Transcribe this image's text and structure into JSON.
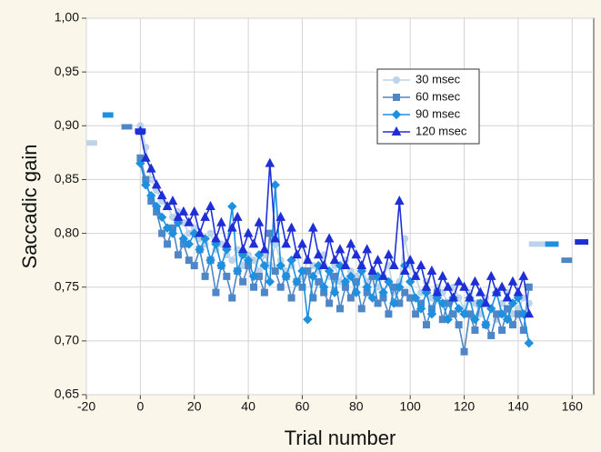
{
  "chart_data": {
    "type": "line",
    "x_label": "Trial number",
    "y_label": "Saccadic gain",
    "xlim": [
      -20,
      168
    ],
    "ylim": [
      0.65,
      1.0
    ],
    "xticks": [
      -20,
      0,
      20,
      40,
      60,
      80,
      100,
      120,
      140,
      160
    ],
    "yticks": [
      {
        "value": 0.65,
        "label": "0,65"
      },
      {
        "value": 0.7,
        "label": "0,70"
      },
      {
        "value": 0.75,
        "label": "0,75"
      },
      {
        "value": 0.8,
        "label": "0,80"
      },
      {
        "value": 0.85,
        "label": "0,85"
      },
      {
        "value": 0.9,
        "label": "0,90"
      },
      {
        "value": 0.95,
        "label": "0,95"
      },
      {
        "value": 1.0,
        "label": "1,00"
      }
    ],
    "grid": true,
    "legend": "upper-right",
    "x": [
      0,
      2,
      4,
      6,
      8,
      10,
      12,
      14,
      16,
      18,
      20,
      22,
      24,
      26,
      28,
      30,
      32,
      34,
      36,
      38,
      40,
      42,
      44,
      46,
      48,
      50,
      52,
      54,
      56,
      58,
      60,
      62,
      64,
      66,
      68,
      70,
      72,
      74,
      76,
      78,
      80,
      82,
      84,
      86,
      88,
      90,
      92,
      94,
      96,
      98,
      100,
      102,
      104,
      106,
      108,
      110,
      112,
      114,
      116,
      118,
      120,
      122,
      124,
      126,
      128,
      130,
      132,
      134,
      136,
      138,
      140,
      142,
      144
    ],
    "series": [
      {
        "name": "30 msec",
        "color": "#bcd3ea",
        "marker": "circle",
        "pre": {
          "x": [
            -20,
            -16
          ],
          "value": 0.884
        },
        "post": {
          "x": [
            144,
            150
          ],
          "value": 0.79
        },
        "values": [
          0.9,
          0.88,
          0.85,
          0.84,
          0.83,
          0.825,
          0.815,
          0.82,
          0.81,
          0.8,
          0.805,
          0.795,
          0.79,
          0.8,
          0.785,
          0.79,
          0.78,
          0.775,
          0.785,
          0.77,
          0.78,
          0.775,
          0.765,
          0.78,
          0.77,
          0.79,
          0.775,
          0.765,
          0.77,
          0.78,
          0.76,
          0.775,
          0.77,
          0.765,
          0.78,
          0.76,
          0.77,
          0.755,
          0.775,
          0.765,
          0.76,
          0.77,
          0.755,
          0.765,
          0.75,
          0.76,
          0.77,
          0.745,
          0.755,
          0.795,
          0.77,
          0.76,
          0.745,
          0.755,
          0.74,
          0.75,
          0.745,
          0.735,
          0.75,
          0.74,
          0.73,
          0.745,
          0.735,
          0.725,
          0.74,
          0.73,
          0.72,
          0.735,
          0.745,
          0.725,
          0.73,
          0.74,
          0.735
        ]
      },
      {
        "name": "60 msec",
        "color": "#4f86c6",
        "marker": "square",
        "pre": {
          "x": [
            -7,
            -3
          ],
          "value": 0.899
        },
        "post": {
          "x": [
            156,
            160
          ],
          "value": 0.775
        },
        "values": [
          0.87,
          0.85,
          0.83,
          0.82,
          0.8,
          0.79,
          0.805,
          0.78,
          0.79,
          0.775,
          0.77,
          0.785,
          0.76,
          0.775,
          0.745,
          0.77,
          0.76,
          0.74,
          0.765,
          0.755,
          0.77,
          0.75,
          0.76,
          0.745,
          0.8,
          0.765,
          0.75,
          0.76,
          0.74,
          0.755,
          0.75,
          0.765,
          0.74,
          0.755,
          0.745,
          0.735,
          0.76,
          0.73,
          0.75,
          0.74,
          0.755,
          0.73,
          0.745,
          0.76,
          0.735,
          0.74,
          0.725,
          0.75,
          0.735,
          0.745,
          0.74,
          0.725,
          0.735,
          0.715,
          0.73,
          0.745,
          0.72,
          0.735,
          0.725,
          0.715,
          0.69,
          0.725,
          0.71,
          0.735,
          0.715,
          0.705,
          0.725,
          0.71,
          0.73,
          0.715,
          0.725,
          0.71,
          0.75
        ]
      },
      {
        "name": "90 msec",
        "color": "#1e90e0",
        "marker": "diamond",
        "pre": {
          "x": [
            -14,
            -10
          ],
          "value": 0.91
        },
        "post": {
          "x": [
            150,
            155
          ],
          "value": 0.79
        },
        "values": [
          0.865,
          0.845,
          0.835,
          0.825,
          0.815,
          0.805,
          0.8,
          0.81,
          0.795,
          0.79,
          0.8,
          0.785,
          0.795,
          0.775,
          0.79,
          0.77,
          0.785,
          0.825,
          0.765,
          0.78,
          0.775,
          0.76,
          0.78,
          0.77,
          0.755,
          0.845,
          0.77,
          0.76,
          0.775,
          0.755,
          0.765,
          0.72,
          0.76,
          0.77,
          0.75,
          0.765,
          0.745,
          0.77,
          0.755,
          0.76,
          0.745,
          0.765,
          0.75,
          0.74,
          0.76,
          0.745,
          0.755,
          0.735,
          0.75,
          0.77,
          0.755,
          0.74,
          0.73,
          0.745,
          0.725,
          0.74,
          0.735,
          0.72,
          0.74,
          0.73,
          0.725,
          0.74,
          0.72,
          0.735,
          0.715,
          0.73,
          0.745,
          0.725,
          0.72,
          0.735,
          0.74,
          0.725,
          0.698
        ]
      },
      {
        "name": "120 msec",
        "color": "#1f2fd6",
        "marker": "triangle",
        "pre": {
          "x": [
            -2,
            2
          ],
          "value": 0.895
        },
        "post": {
          "x": [
            161,
            166
          ],
          "value": 0.792
        },
        "values": [
          0.895,
          0.87,
          0.86,
          0.845,
          0.835,
          0.825,
          0.83,
          0.815,
          0.82,
          0.81,
          0.82,
          0.8,
          0.815,
          0.825,
          0.795,
          0.81,
          0.79,
          0.805,
          0.815,
          0.785,
          0.8,
          0.79,
          0.81,
          0.785,
          0.865,
          0.795,
          0.815,
          0.79,
          0.805,
          0.78,
          0.79,
          0.775,
          0.805,
          0.78,
          0.77,
          0.795,
          0.775,
          0.785,
          0.77,
          0.79,
          0.78,
          0.77,
          0.785,
          0.765,
          0.775,
          0.76,
          0.78,
          0.77,
          0.83,
          0.765,
          0.775,
          0.76,
          0.77,
          0.75,
          0.765,
          0.745,
          0.76,
          0.75,
          0.74,
          0.755,
          0.75,
          0.74,
          0.755,
          0.745,
          0.735,
          0.76,
          0.745,
          0.75,
          0.74,
          0.755,
          0.745,
          0.76,
          0.725
        ]
      }
    ]
  }
}
